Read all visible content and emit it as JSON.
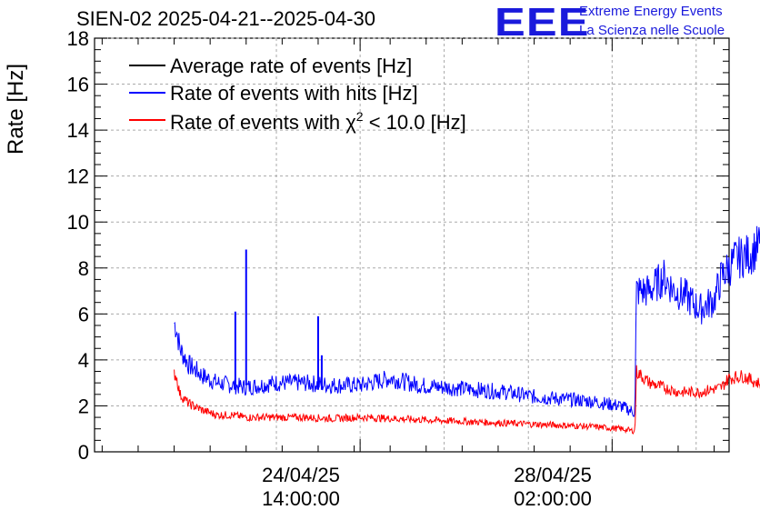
{
  "header": {
    "title": "SIEN-02 2025-04-21--2025-04-30",
    "logo_text": "EEE",
    "brand_line1": "Extreme Energy Events",
    "brand_line2": "La Scienza nelle Scuole"
  },
  "colors": {
    "average": "#000000",
    "hits": "#0000ff",
    "chi2": "#ff0000",
    "logo": "#1a1adc"
  },
  "chart_data": {
    "type": "line",
    "title": "SIEN-02 2025-04-21--2025-04-30",
    "ylabel": "Rate [Hz]",
    "xlabel": "",
    "ylim": [
      0,
      18
    ],
    "y_ticks": [
      "0",
      "2",
      "4",
      "6",
      "8",
      "10",
      "12",
      "14",
      "16",
      "18"
    ],
    "x_tick_labels": [
      {
        "line1": "24/04/25",
        "line2": "14:00:00",
        "day": 3.583
      },
      {
        "line1": "28/04/25",
        "line2": "02:00:00",
        "day": 7.083
      }
    ],
    "x_range_days": [
      0,
      9
    ],
    "grid": true,
    "legend": [
      {
        "name": "Average rate of events [Hz]",
        "color": "#000000"
      },
      {
        "name": "Rate of events with hits [Hz]",
        "color": "#0000ff"
      },
      {
        "name_prefix": "Rate of events with ",
        "name_symbol": "χ",
        "name_sup": "2",
        "name_suffix": " < 10.0 [Hz]",
        "color": "#ff0000"
      }
    ],
    "series": [
      {
        "name": "Rate of events with hits [Hz]",
        "color": "#0000ff",
        "x": [
          1.0,
          1.03,
          1.08,
          1.2,
          1.4,
          1.6,
          1.8,
          2.0,
          2.4,
          2.8,
          3.2,
          3.6,
          4.0,
          4.4,
          4.8,
          5.2,
          5.6,
          6.0,
          6.4,
          6.8,
          7.2,
          7.4,
          7.42,
          7.6,
          7.8,
          7.95,
          8.1,
          8.3,
          8.5,
          8.6,
          8.8,
          9.0,
          9.2,
          9.3,
          9.4,
          9.55
        ],
        "y": [
          5.6,
          5.4,
          4.5,
          3.8,
          3.3,
          3.0,
          2.9,
          2.8,
          3.0,
          3.0,
          2.9,
          2.9,
          3.2,
          2.9,
          2.8,
          2.7,
          2.6,
          2.4,
          2.3,
          2.2,
          2.0,
          1.7,
          7.0,
          7.0,
          7.6,
          7.0,
          6.8,
          6.2,
          6.6,
          7.6,
          8.4,
          8.6,
          9.2,
          9.0,
          8.8,
          9.0
        ],
        "noise": 0.5
      },
      {
        "name": "Rate of events with chi2 < 10.0 [Hz]",
        "color": "#ff0000",
        "x": [
          1.0,
          1.03,
          1.08,
          1.2,
          1.4,
          1.6,
          1.8,
          2.0,
          2.4,
          2.8,
          3.2,
          3.6,
          4.0,
          4.4,
          4.8,
          5.2,
          5.6,
          6.0,
          6.4,
          6.8,
          7.2,
          7.4,
          7.42,
          7.6,
          7.8,
          8.0,
          8.3,
          8.6,
          8.7,
          8.9,
          9.1,
          9.3,
          9.55
        ],
        "y": [
          3.4,
          3.3,
          2.5,
          2.1,
          1.8,
          1.6,
          1.6,
          1.5,
          1.5,
          1.5,
          1.45,
          1.5,
          1.45,
          1.4,
          1.35,
          1.3,
          1.25,
          1.2,
          1.15,
          1.1,
          1.0,
          0.9,
          3.5,
          3.0,
          2.8,
          2.6,
          2.6,
          2.8,
          3.2,
          3.3,
          3.0,
          2.9,
          3.0
        ],
        "noise": 0.35
      }
    ],
    "spikes": [
      {
        "series": "hits",
        "day": 1.85,
        "top": 6.1,
        "base": 2.7
      },
      {
        "series": "hits",
        "day": 2.0,
        "top": 8.8,
        "base": 2.9
      },
      {
        "series": "hits",
        "day": 3.0,
        "top": 5.9,
        "base": 2.7
      },
      {
        "series": "hits",
        "day": 3.05,
        "top": 4.2,
        "base": 2.7
      }
    ]
  }
}
